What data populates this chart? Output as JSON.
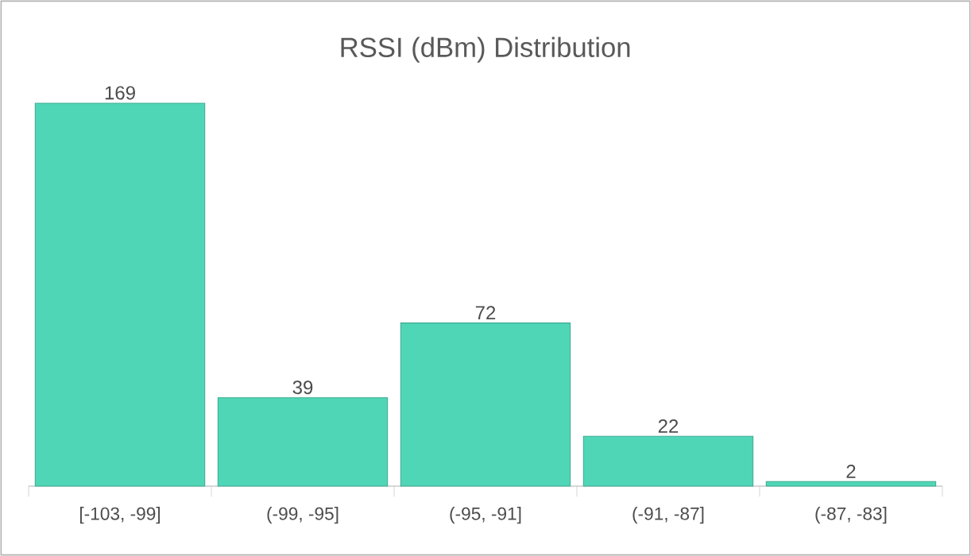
{
  "chart_data": {
    "type": "bar",
    "title": "RSSI (dBm) Distribution",
    "categories": [
      "[-103, -99]",
      "(-99, -95]",
      "(-95, -91]",
      "(-91, -87]",
      "(-87, -83]"
    ],
    "values": [
      169,
      39,
      72,
      22,
      2
    ],
    "color": "#4fd6b6",
    "data_labels": true
  }
}
